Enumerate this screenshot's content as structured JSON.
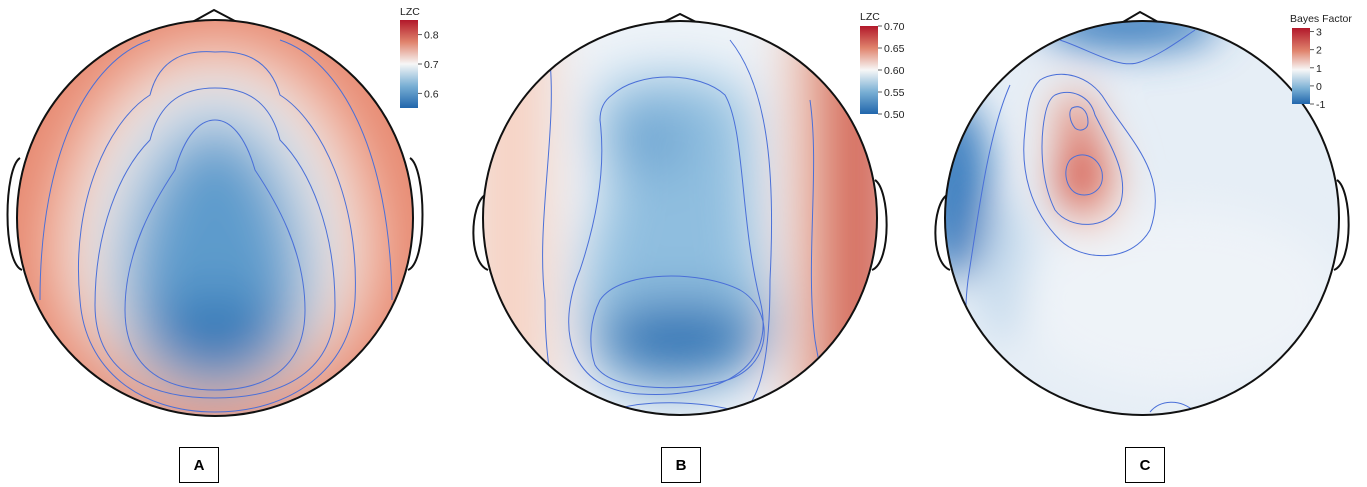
{
  "colors": {
    "blue_low": "#2166ac",
    "white_mid": "#f7f7f7",
    "red_high": "#b2182b",
    "contour": "#4a6fd8",
    "outline": "#111111"
  },
  "chart_data": [
    {
      "type": "heatmap",
      "panel": "A",
      "colorbar_title": "LZC",
      "colorbar_ticks": [
        0.8,
        0.7,
        0.6
      ],
      "colorbar_range": [
        0.55,
        0.85
      ],
      "regions": [
        {
          "region": "periphery (left/right edges)",
          "value": 0.82
        },
        {
          "region": "frontal rim",
          "value": 0.77
        },
        {
          "region": "intermediate ring",
          "value": 0.7
        },
        {
          "region": "central",
          "value": 0.6
        },
        {
          "region": "posterior centre",
          "value": 0.56
        }
      ]
    },
    {
      "type": "heatmap",
      "panel": "B",
      "colorbar_title": "LZC",
      "colorbar_ticks": [
        0.7,
        0.65,
        0.6,
        0.55,
        0.5
      ],
      "colorbar_range": [
        0.5,
        0.7
      ],
      "regions": [
        {
          "region": "right temporal edge",
          "value": 0.7
        },
        {
          "region": "left temporal edge",
          "value": 0.63
        },
        {
          "region": "central",
          "value": 0.56
        },
        {
          "region": "posterior centre",
          "value": 0.51
        }
      ]
    },
    {
      "type": "heatmap",
      "panel": "C",
      "colorbar_title": "Bayes Factor",
      "colorbar_ticks": [
        3,
        2,
        1,
        0,
        -1
      ],
      "colorbar_range": [
        -1,
        3.2
      ],
      "regions": [
        {
          "region": "left frontal peak",
          "value": 3.1
        },
        {
          "region": "left frontal secondary peak",
          "value": 2.5
        },
        {
          "region": "left temporal edge",
          "value": -0.9
        },
        {
          "region": "top frontal edge",
          "value": -0.6
        },
        {
          "region": "remaining scalp",
          "value": 0.4
        }
      ]
    }
  ],
  "panel_labels": [
    "A",
    "B",
    "C"
  ]
}
